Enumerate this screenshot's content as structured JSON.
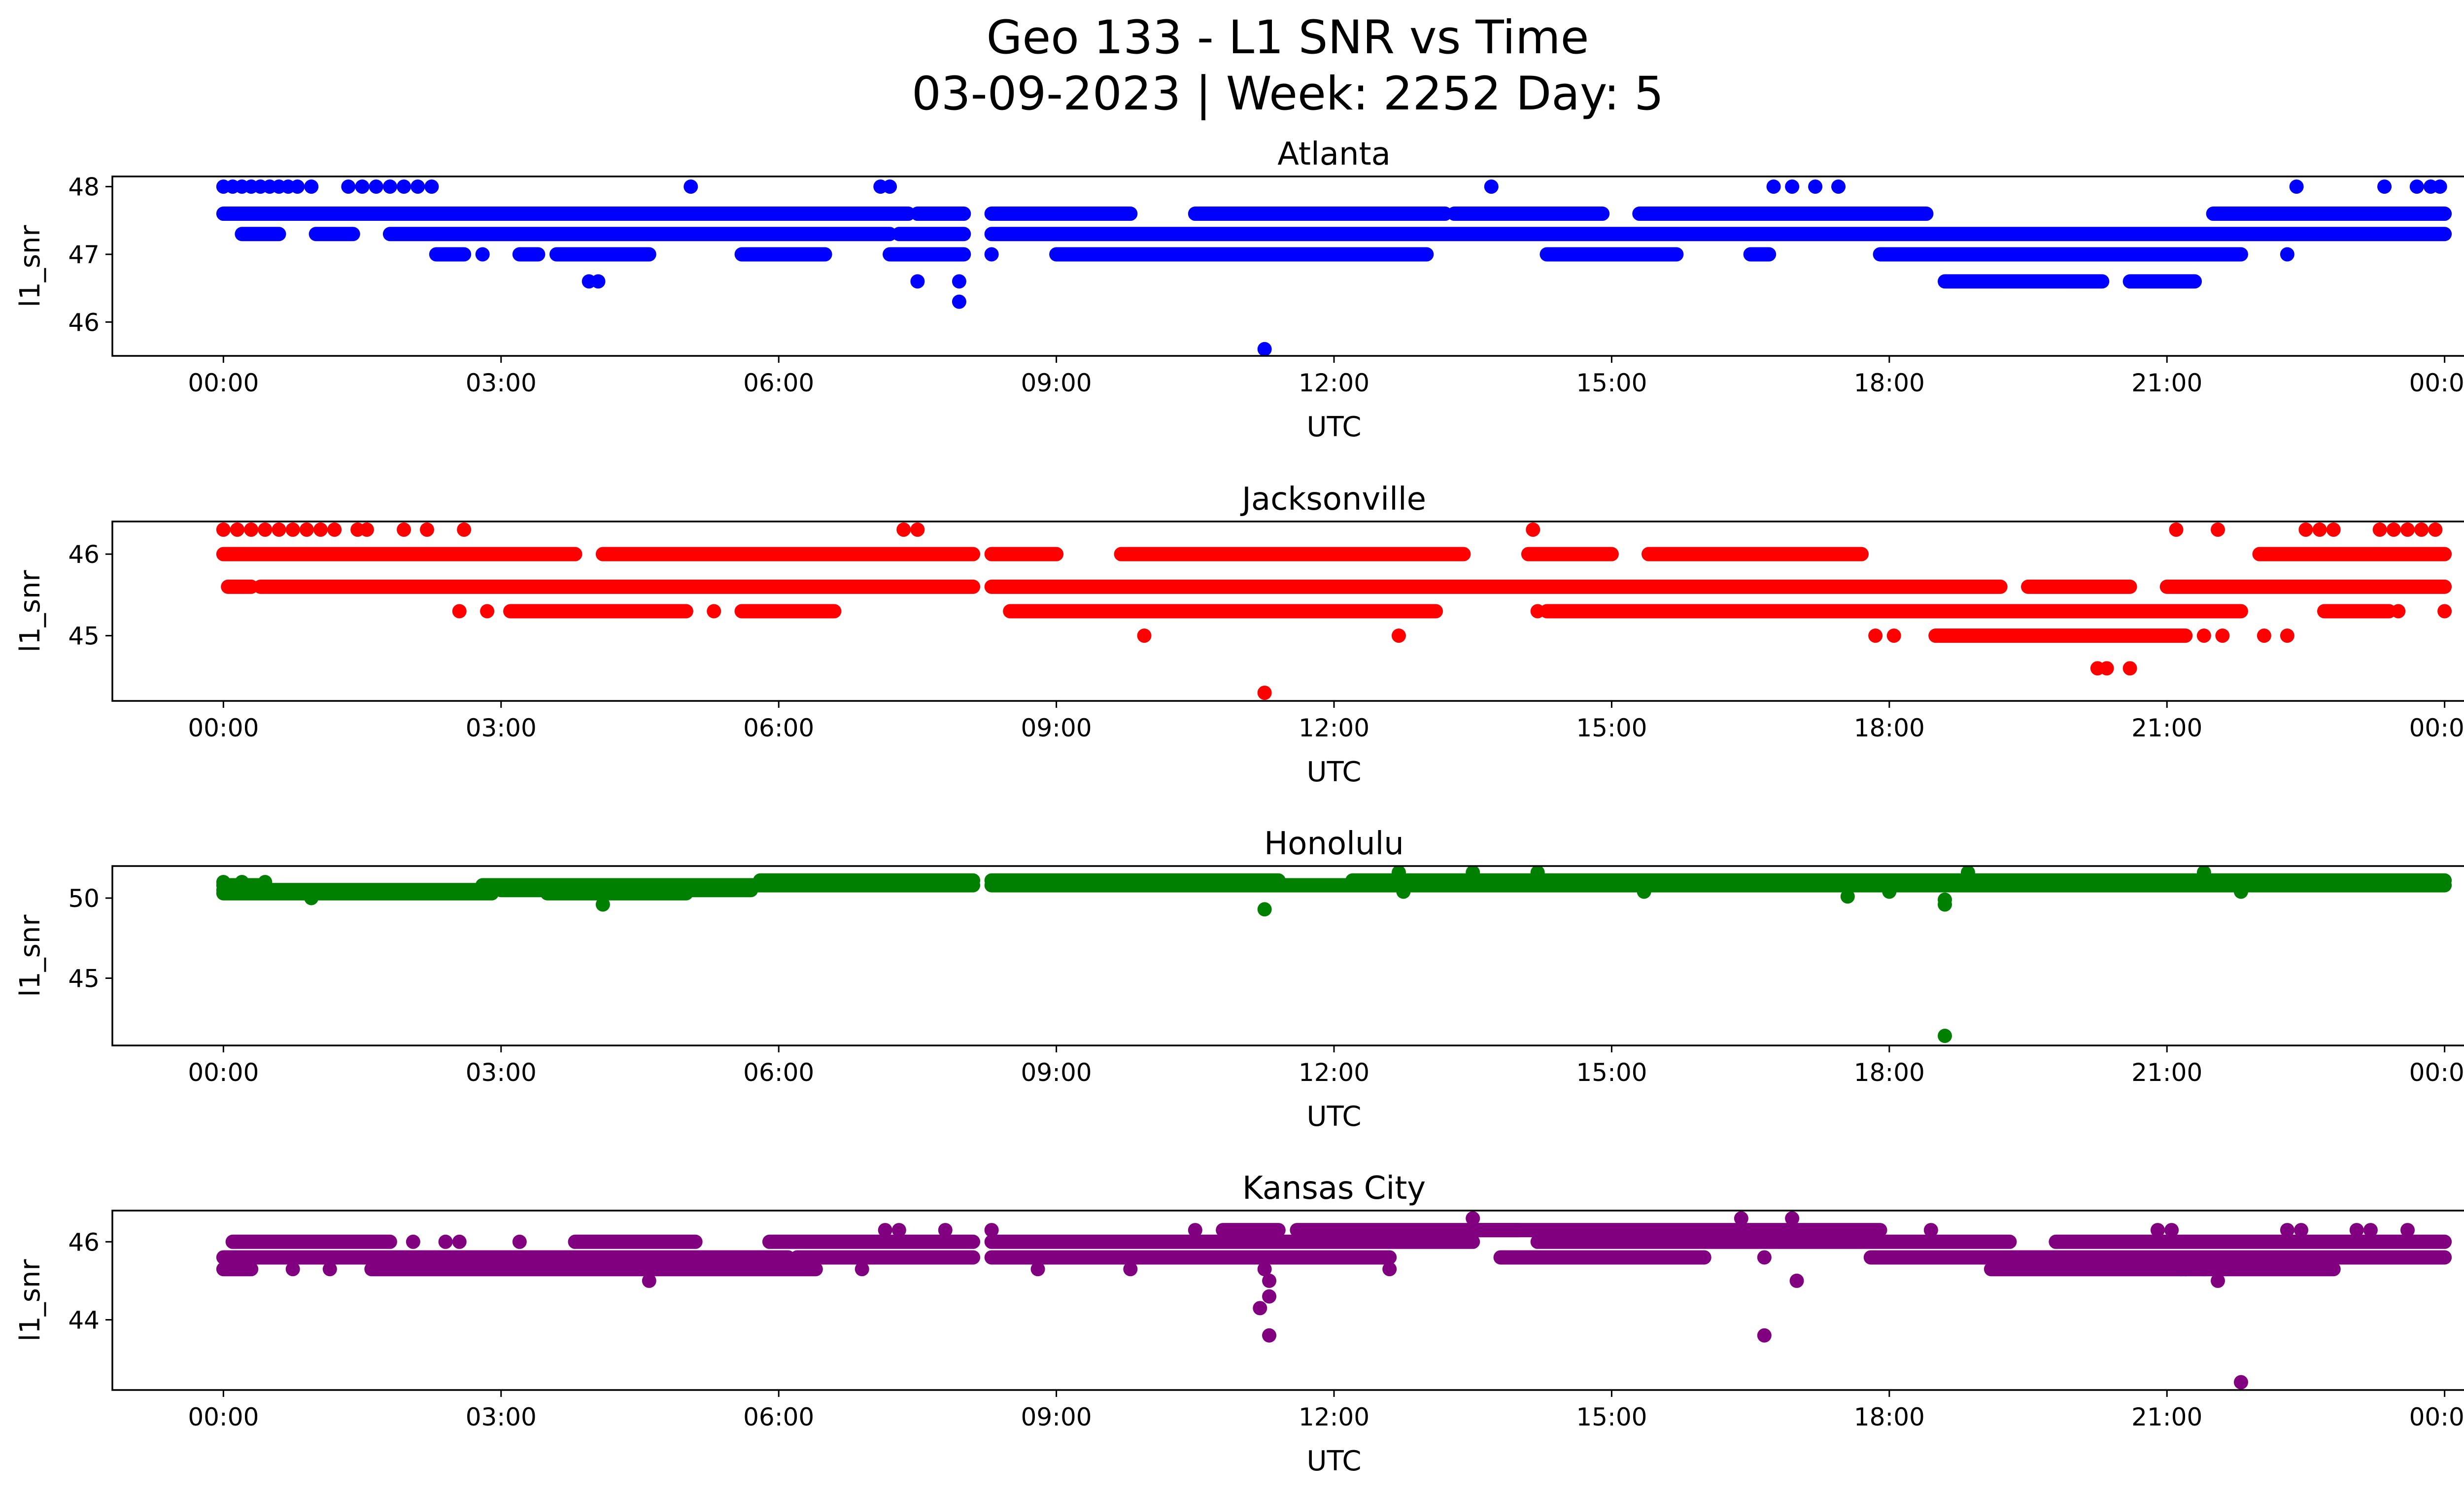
{
  "figure": {
    "title_line1": "Geo 133 - L1 SNR vs Time",
    "title_line2": "03-09-2023 | Week: 2252 Day: 5"
  },
  "chart_data": [
    {
      "type": "scatter",
      "title": "Atlanta",
      "xlabel": "UTC",
      "ylabel": "l1_snr",
      "color": "#0000ff",
      "x_range_hours": [
        -1.2,
        25.2
      ],
      "ylim": [
        45.5,
        48.15
      ],
      "x_ticks": [
        "00:00",
        "03:00",
        "06:00",
        "09:00",
        "12:00",
        "15:00",
        "18:00",
        "21:00",
        "00:00"
      ],
      "y_ticks": [
        46,
        47,
        48
      ],
      "bands": [
        {
          "y": 47.6,
          "segments": [
            [
              0,
              4.1
            ],
            [
              4.1,
              7.4
            ],
            [
              7.5,
              8.0
            ],
            [
              8.3,
              9.8
            ],
            [
              10.5,
              13.2
            ],
            [
              13.3,
              14.9
            ],
            [
              15.3,
              18.4
            ],
            [
              21.5,
              24.0
            ]
          ]
        },
        {
          "y": 47.3,
          "segments": [
            [
              0.2,
              0.6
            ],
            [
              1.0,
              1.4
            ],
            [
              1.8,
              7.2
            ],
            [
              7.3,
              8.0
            ],
            [
              8.3,
              24.0
            ]
          ]
        },
        {
          "y": 47.0,
          "segments": [
            [
              2.3,
              2.6
            ],
            [
              3.2,
              3.4
            ],
            [
              3.6,
              4.6
            ],
            [
              5.6,
              6.5
            ],
            [
              7.2,
              8.0
            ],
            [
              9.0,
              13.0
            ],
            [
              14.3,
              15.7
            ],
            [
              16.5,
              16.7
            ],
            [
              17.9,
              21.8
            ]
          ]
        },
        {
          "y": 46.6,
          "segments": [
            [
              18.6,
              20.3
            ],
            [
              20.6,
              21.3
            ]
          ]
        }
      ],
      "points": [
        {
          "x": 0.0,
          "y": 48.0
        },
        {
          "x": 0.1,
          "y": 48.0
        },
        {
          "x": 0.2,
          "y": 48.0
        },
        {
          "x": 0.3,
          "y": 48.0
        },
        {
          "x": 0.4,
          "y": 48.0
        },
        {
          "x": 0.5,
          "y": 48.0
        },
        {
          "x": 0.6,
          "y": 48.0
        },
        {
          "x": 0.7,
          "y": 48.0
        },
        {
          "x": 0.8,
          "y": 48.0
        },
        {
          "x": 0.95,
          "y": 48.0
        },
        {
          "x": 1.35,
          "y": 48.0
        },
        {
          "x": 1.5,
          "y": 48.0
        },
        {
          "x": 1.65,
          "y": 48.0
        },
        {
          "x": 1.8,
          "y": 48.0
        },
        {
          "x": 1.95,
          "y": 48.0
        },
        {
          "x": 2.1,
          "y": 48.0
        },
        {
          "x": 2.25,
          "y": 48.0
        },
        {
          "x": 5.05,
          "y": 48.0
        },
        {
          "x": 7.1,
          "y": 48.0
        },
        {
          "x": 7.2,
          "y": 48.0
        },
        {
          "x": 13.7,
          "y": 48.0
        },
        {
          "x": 16.75,
          "y": 48.0
        },
        {
          "x": 16.95,
          "y": 48.0
        },
        {
          "x": 17.2,
          "y": 48.0
        },
        {
          "x": 17.45,
          "y": 48.0
        },
        {
          "x": 22.4,
          "y": 48.0
        },
        {
          "x": 23.35,
          "y": 48.0
        },
        {
          "x": 23.7,
          "y": 48.0
        },
        {
          "x": 23.85,
          "y": 48.0
        },
        {
          "x": 23.95,
          "y": 48.0
        },
        {
          "x": 2.8,
          "y": 47.0
        },
        {
          "x": 8.3,
          "y": 47.0
        },
        {
          "x": 22.3,
          "y": 47.0
        },
        {
          "x": 3.95,
          "y": 46.6
        },
        {
          "x": 4.05,
          "y": 46.6
        },
        {
          "x": 7.5,
          "y": 46.6
        },
        {
          "x": 7.95,
          "y": 46.6
        },
        {
          "x": 7.95,
          "y": 46.3
        },
        {
          "x": 11.25,
          "y": 45.6
        }
      ]
    },
    {
      "type": "scatter",
      "title": "Jacksonville",
      "xlabel": "UTC",
      "ylabel": "l1_snr",
      "color": "#ff0000",
      "x_range_hours": [
        -1.2,
        25.2
      ],
      "ylim": [
        44.2,
        46.4
      ],
      "x_ticks": [
        "00:00",
        "03:00",
        "06:00",
        "09:00",
        "12:00",
        "15:00",
        "18:00",
        "21:00",
        "00:00"
      ],
      "y_ticks": [
        45,
        46
      ],
      "bands": [
        {
          "y": 46.0,
          "segments": [
            [
              0,
              3.8
            ],
            [
              4.1,
              8.1
            ],
            [
              8.3,
              9.0
            ],
            [
              9.7,
              13.4
            ],
            [
              14.1,
              15.0
            ],
            [
              15.4,
              17.7
            ],
            [
              22.0,
              24.0
            ]
          ]
        },
        {
          "y": 45.6,
          "segments": [
            [
              0.05,
              0.3
            ],
            [
              0.4,
              8.1
            ],
            [
              8.3,
              19.2
            ],
            [
              19.5,
              20.6
            ],
            [
              21.0,
              24.0
            ]
          ]
        },
        {
          "y": 45.3,
          "segments": [
            [
              3.1,
              5.0
            ],
            [
              5.6,
              6.6
            ],
            [
              8.5,
              13.1
            ],
            [
              14.3,
              21.8
            ],
            [
              22.7,
              23.4
            ]
          ]
        },
        {
          "y": 45.0,
          "segments": [
            [
              18.5,
              21.2
            ]
          ]
        }
      ],
      "points": [
        {
          "x": 0.0,
          "y": 46.3
        },
        {
          "x": 0.15,
          "y": 46.3
        },
        {
          "x": 0.3,
          "y": 46.3
        },
        {
          "x": 0.45,
          "y": 46.3
        },
        {
          "x": 0.6,
          "y": 46.3
        },
        {
          "x": 0.75,
          "y": 46.3
        },
        {
          "x": 0.9,
          "y": 46.3
        },
        {
          "x": 1.05,
          "y": 46.3
        },
        {
          "x": 1.2,
          "y": 46.3
        },
        {
          "x": 1.45,
          "y": 46.3
        },
        {
          "x": 1.55,
          "y": 46.3
        },
        {
          "x": 1.95,
          "y": 46.3
        },
        {
          "x": 2.2,
          "y": 46.3
        },
        {
          "x": 2.6,
          "y": 46.3
        },
        {
          "x": 7.35,
          "y": 46.3
        },
        {
          "x": 7.5,
          "y": 46.3
        },
        {
          "x": 14.15,
          "y": 46.3
        },
        {
          "x": 21.1,
          "y": 46.3
        },
        {
          "x": 21.55,
          "y": 46.3
        },
        {
          "x": 22.5,
          "y": 46.3
        },
        {
          "x": 22.65,
          "y": 46.3
        },
        {
          "x": 22.8,
          "y": 46.3
        },
        {
          "x": 23.3,
          "y": 46.3
        },
        {
          "x": 23.45,
          "y": 46.3
        },
        {
          "x": 23.6,
          "y": 46.3
        },
        {
          "x": 23.75,
          "y": 46.3
        },
        {
          "x": 23.9,
          "y": 46.3
        },
        {
          "x": 2.55,
          "y": 45.3
        },
        {
          "x": 2.85,
          "y": 45.3
        },
        {
          "x": 5.3,
          "y": 45.3
        },
        {
          "x": 14.2,
          "y": 45.3
        },
        {
          "x": 23.5,
          "y": 45.3
        },
        {
          "x": 24.0,
          "y": 45.3
        },
        {
          "x": 9.95,
          "y": 45.0
        },
        {
          "x": 12.7,
          "y": 45.0
        },
        {
          "x": 17.85,
          "y": 45.0
        },
        {
          "x": 18.05,
          "y": 45.0
        },
        {
          "x": 21.4,
          "y": 45.0
        },
        {
          "x": 21.6,
          "y": 45.0
        },
        {
          "x": 22.05,
          "y": 45.0
        },
        {
          "x": 22.3,
          "y": 45.0
        },
        {
          "x": 20.25,
          "y": 44.6
        },
        {
          "x": 20.35,
          "y": 44.6
        },
        {
          "x": 20.6,
          "y": 44.6
        },
        {
          "x": 11.25,
          "y": 44.3
        }
      ]
    },
    {
      "type": "scatter",
      "title": "Honolulu",
      "xlabel": "UTC",
      "ylabel": "l1_snr",
      "color": "#008000",
      "x_range_hours": [
        -1.2,
        25.2
      ],
      "ylim": [
        40.8,
        52.0
      ],
      "x_ticks": [
        "00:00",
        "03:00",
        "06:00",
        "09:00",
        "12:00",
        "15:00",
        "18:00",
        "21:00",
        "00:00"
      ],
      "y_ticks": [
        45,
        50
      ],
      "bands": [
        {
          "y": 51.1,
          "segments": [
            [
              5.8,
              8.1
            ],
            [
              8.3,
              11.4
            ],
            [
              12.2,
              24.0
            ]
          ]
        },
        {
          "y": 50.8,
          "segments": [
            [
              0,
              0.4
            ],
            [
              2.8,
              8.1
            ],
            [
              8.3,
              24.0
            ]
          ]
        },
        {
          "y": 50.5,
          "segments": [
            [
              0,
              2.9
            ],
            [
              3.0,
              5.7
            ]
          ]
        },
        {
          "y": 50.3,
          "segments": [
            [
              0,
              2.9
            ],
            [
              3.5,
              5.0
            ]
          ]
        }
      ],
      "points": [
        {
          "x": 0.0,
          "y": 51.0
        },
        {
          "x": 0.2,
          "y": 51.0
        },
        {
          "x": 0.45,
          "y": 51.0
        },
        {
          "x": 0.95,
          "y": 50.0
        },
        {
          "x": 4.1,
          "y": 49.6
        },
        {
          "x": 12.7,
          "y": 51.6
        },
        {
          "x": 13.5,
          "y": 51.6
        },
        {
          "x": 14.2,
          "y": 51.6
        },
        {
          "x": 18.85,
          "y": 51.6
        },
        {
          "x": 21.4,
          "y": 51.6
        },
        {
          "x": 12.75,
          "y": 50.4
        },
        {
          "x": 15.35,
          "y": 50.4
        },
        {
          "x": 17.55,
          "y": 50.1
        },
        {
          "x": 18.0,
          "y": 50.4
        },
        {
          "x": 18.6,
          "y": 49.9
        },
        {
          "x": 21.8,
          "y": 50.4
        },
        {
          "x": 11.25,
          "y": 49.3
        },
        {
          "x": 18.6,
          "y": 49.6
        },
        {
          "x": 18.6,
          "y": 41.4
        }
      ]
    },
    {
      "type": "scatter",
      "title": "Kansas City",
      "xlabel": "UTC",
      "ylabel": "l1_snr",
      "color": "#800080",
      "x_range_hours": [
        -1.2,
        25.2
      ],
      "ylim": [
        42.2,
        46.8
      ],
      "x_ticks": [
        "00:00",
        "03:00",
        "06:00",
        "09:00",
        "12:00",
        "15:00",
        "18:00",
        "21:00",
        "00:00"
      ],
      "y_ticks": [
        44,
        46
      ],
      "bands": [
        {
          "y": 46.3,
          "segments": [
            [
              10.8,
              11.4
            ],
            [
              11.6,
              17.9
            ],
            [
              13.5,
              14.0
            ]
          ]
        },
        {
          "y": 46.0,
          "segments": [
            [
              0.1,
              1.8
            ],
            [
              3.8,
              5.1
            ],
            [
              5.9,
              8.1
            ],
            [
              8.3,
              13.5
            ],
            [
              14.2,
              19.3
            ],
            [
              19.8,
              24.0
            ]
          ]
        },
        {
          "y": 45.6,
          "segments": [
            [
              0,
              6.1
            ],
            [
              6.2,
              8.1
            ],
            [
              8.3,
              12.6
            ],
            [
              13.8,
              16.0
            ],
            [
              17.8,
              24.0
            ]
          ]
        },
        {
          "y": 45.3,
          "segments": [
            [
              0,
              0.3
            ],
            [
              1.6,
              6.4
            ],
            [
              19.1,
              22.8
            ]
          ]
        }
      ],
      "points": [
        {
          "x": 0.75,
          "y": 45.3
        },
        {
          "x": 1.15,
          "y": 45.3
        },
        {
          "x": 2.05,
          "y": 46.0
        },
        {
          "x": 2.4,
          "y": 46.0
        },
        {
          "x": 2.55,
          "y": 46.0
        },
        {
          "x": 3.2,
          "y": 46.0
        },
        {
          "x": 6.9,
          "y": 45.3
        },
        {
          "x": 7.15,
          "y": 46.3
        },
        {
          "x": 7.3,
          "y": 46.3
        },
        {
          "x": 7.8,
          "y": 46.3
        },
        {
          "x": 8.3,
          "y": 46.3
        },
        {
          "x": 4.6,
          "y": 45.0
        },
        {
          "x": 8.8,
          "y": 45.3
        },
        {
          "x": 9.8,
          "y": 45.3
        },
        {
          "x": 10.5,
          "y": 46.3
        },
        {
          "x": 11.25,
          "y": 45.3
        },
        {
          "x": 11.3,
          "y": 45.0
        },
        {
          "x": 11.3,
          "y": 44.6
        },
        {
          "x": 11.2,
          "y": 44.3
        },
        {
          "x": 11.3,
          "y": 43.6
        },
        {
          "x": 12.6,
          "y": 45.3
        },
        {
          "x": 13.5,
          "y": 46.6
        },
        {
          "x": 16.4,
          "y": 46.6
        },
        {
          "x": 16.65,
          "y": 45.6
        },
        {
          "x": 16.65,
          "y": 43.6
        },
        {
          "x": 16.95,
          "y": 46.6
        },
        {
          "x": 17.0,
          "y": 45.0
        },
        {
          "x": 18.45,
          "y": 46.3
        },
        {
          "x": 20.9,
          "y": 46.3
        },
        {
          "x": 21.05,
          "y": 46.3
        },
        {
          "x": 21.15,
          "y": 45.3
        },
        {
          "x": 21.2,
          "y": 45.3
        },
        {
          "x": 21.4,
          "y": 45.3
        },
        {
          "x": 21.55,
          "y": 45.0
        },
        {
          "x": 22.3,
          "y": 46.3
        },
        {
          "x": 22.45,
          "y": 46.3
        },
        {
          "x": 23.05,
          "y": 46.3
        },
        {
          "x": 23.2,
          "y": 46.3
        },
        {
          "x": 23.6,
          "y": 46.3
        },
        {
          "x": 21.8,
          "y": 42.4
        }
      ]
    }
  ]
}
